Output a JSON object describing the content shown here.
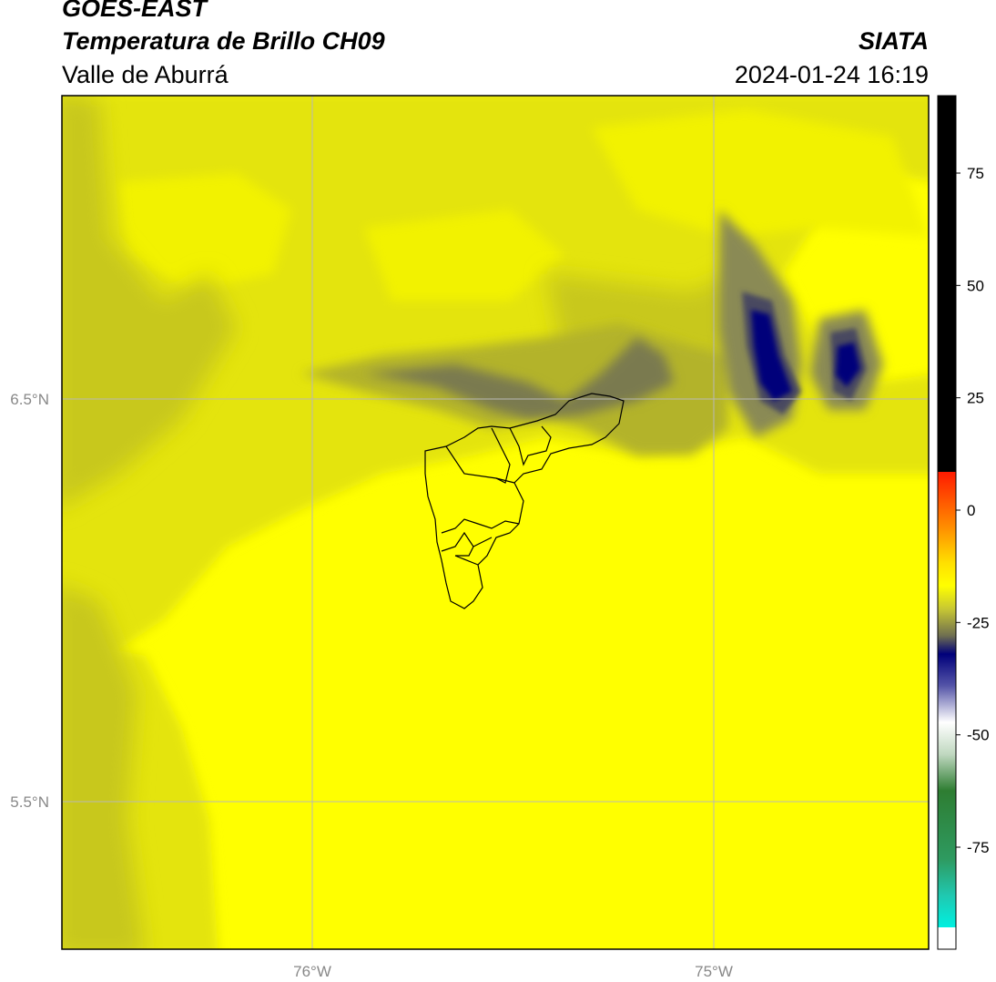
{
  "header": {
    "satellite": "GOES-EAST",
    "product": "Temperatura de Brillo CH09",
    "region": "Valle de Aburrá",
    "agency": "SIATA",
    "datetime": "2024-01-24 16:19"
  },
  "map": {
    "lat_ticks": [
      {
        "label": "6.5°N"
      },
      {
        "label": "5.5°N"
      }
    ],
    "lon_ticks": [
      {
        "label": "76°W"
      },
      {
        "label": "75°W"
      }
    ]
  },
  "colorbar": {
    "ticks": [
      "75",
      "50",
      "25",
      "0",
      "-25",
      "-50",
      "-75"
    ],
    "colors": {
      "black": "#000000",
      "red": "#ff1a00",
      "orange": "#ff8c00",
      "yellow": "#ffff00",
      "olive": "#8a8a3a",
      "navy": "#00007a",
      "white": "#ffffff",
      "green": "#2e7d32",
      "cyan": "#00f0e0"
    }
  },
  "colors": {
    "field_base": "#ffff00",
    "field_mid": "#e4e40a",
    "field_dark": "#b3b32a",
    "cloud_gray": "#6b6b55",
    "cloud_core": "#00007a",
    "gridline": "#b8b8b8"
  }
}
